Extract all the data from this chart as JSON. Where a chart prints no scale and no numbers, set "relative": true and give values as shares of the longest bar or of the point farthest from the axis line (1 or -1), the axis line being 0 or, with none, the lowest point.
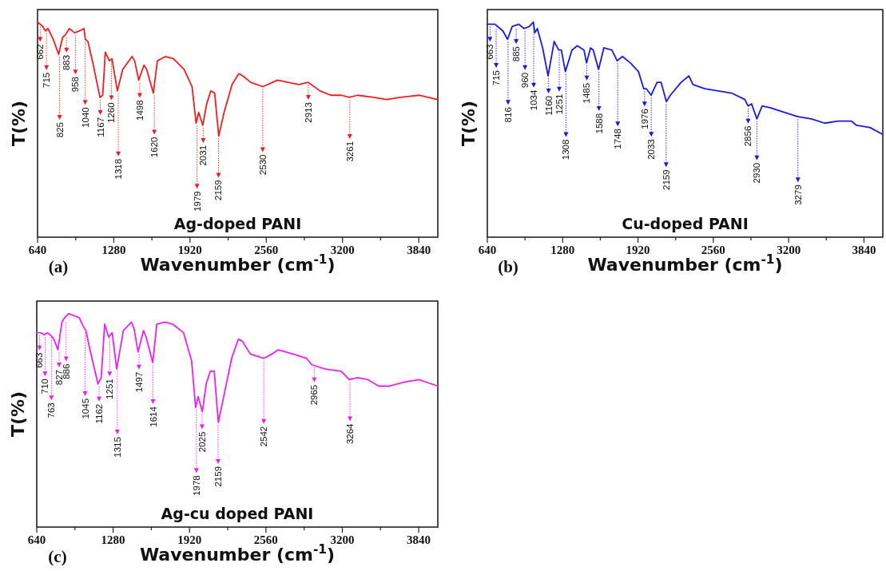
{
  "chart_data": [
    {
      "type": "line",
      "relative": true,
      "title": "Ag-doped PANI",
      "xlabel": "Wavenumber (cm$^{-1}$)",
      "ylabel": "T(%)",
      "xlim": [
        640,
        4000
      ],
      "xticks": [
        640,
        {
          "value": 960,
          "label": null
        },
        1280,
        {
          "value": 1600,
          "label": null
        },
        1920,
        {
          "value": 2240,
          "label": null
        },
        2560,
        {
          "value": 2880,
          "label": null
        },
        3200,
        {
          "value": 3520,
          "label": null
        },
        3840
      ],
      "annotations": [
        "(a)",
        {
          "text": "662",
          "x": 662,
          "y": 0.99
        },
        {
          "text": "715",
          "x": 715,
          "y": 0.97
        },
        {
          "text": "825",
          "x": 825,
          "y": 0.85
        },
        {
          "text": "883",
          "x": 883,
          "y": 0.94
        },
        {
          "text": "958",
          "x": 958,
          "y": 0.95
        },
        {
          "text": "1040",
          "x": 1040,
          "y": 0.92
        },
        {
          "text": "1167",
          "x": 1167,
          "y": 0.65
        },
        {
          "text": "1260",
          "x": 1260,
          "y": 0.83
        },
        {
          "text": "1318",
          "x": 1318,
          "y": 0.68
        },
        {
          "text": "1498",
          "x": 1498,
          "y": 0.73
        },
        {
          "text": "1620",
          "x": 1620,
          "y": 0.67
        },
        {
          "text": "1979",
          "x": 1979,
          "y": 0.53
        },
        {
          "text": "2031",
          "x": 2031,
          "y": 0.52
        },
        {
          "text": "2159",
          "x": 2159,
          "y": 0.47
        },
        {
          "text": "2530",
          "x": 2530,
          "y": 0.7
        },
        {
          "text": "2913",
          "x": 2913,
          "y": 0.72
        },
        {
          "text": "3261",
          "x": 3261,
          "y": 0.65
        }
      ],
      "series": [
        {
          "color": "#f01e1e",
          "x": [
            640,
            683,
            705,
            727,
            772,
            817,
            851,
            873,
            907,
            951,
            996,
            1030,
            1041,
            1063,
            1108,
            1164,
            1187,
            1209,
            1243,
            1265,
            1310,
            1355,
            1433,
            1455,
            1489,
            1534,
            1556,
            1612,
            1646,
            1713,
            1780,
            1870,
            1937,
            1971,
            1993,
            2027,
            2060,
            2094,
            2127,
            2161,
            2206,
            2273,
            2329,
            2363,
            2430,
            2531,
            2654,
            2833,
            2911,
            3012,
            3102,
            3191,
            3258,
            3326,
            3460,
            3572,
            3684,
            3841,
            3998
          ],
          "values": [
            1.0,
            0.98,
            0.96,
            0.97,
            0.92,
            0.85,
            0.93,
            0.94,
            0.97,
            0.95,
            0.96,
            0.97,
            0.92,
            0.91,
            0.8,
            0.65,
            0.66,
            0.86,
            0.82,
            0.83,
            0.68,
            0.78,
            0.84,
            0.82,
            0.73,
            0.8,
            0.78,
            0.67,
            0.82,
            0.84,
            0.83,
            0.78,
            0.7,
            0.53,
            0.58,
            0.52,
            0.62,
            0.68,
            0.67,
            0.47,
            0.58,
            0.71,
            0.76,
            0.75,
            0.72,
            0.7,
            0.73,
            0.71,
            0.72,
            0.68,
            0.66,
            0.66,
            0.65,
            0.66,
            0.65,
            0.64,
            0.65,
            0.66,
            0.64
          ]
        }
      ]
    },
    {
      "type": "line",
      "relative": true,
      "title": "Cu-doped PANI",
      "xlabel": "Wavenumber (cm$^{-1}$)",
      "ylabel": "T(%)",
      "xlim": [
        640,
        4000
      ],
      "xticks": [
        640,
        {
          "value": 960,
          "label": null
        },
        1280,
        {
          "value": 1600,
          "label": null
        },
        1920,
        {
          "value": 2240,
          "label": null
        },
        2560,
        {
          "value": 2880,
          "label": null
        },
        3200,
        {
          "value": 3520,
          "label": null
        },
        3840
      ],
      "annotations": [
        "(b)",
        {
          "text": "663",
          "x": 663,
          "y": 0.99
        },
        {
          "text": "715",
          "x": 715,
          "y": 0.98
        },
        {
          "text": "816",
          "x": 816,
          "y": 0.92
        },
        {
          "text": "885",
          "x": 885,
          "y": 0.98
        },
        {
          "text": "960",
          "x": 960,
          "y": 0.97
        },
        {
          "text": "1034",
          "x": 1034,
          "y": 1.0
        },
        {
          "text": "1160",
          "x": 1160,
          "y": 0.75
        },
        {
          "text": "1251",
          "x": 1251,
          "y": 0.87
        },
        {
          "text": "1308",
          "x": 1308,
          "y": 0.77
        },
        {
          "text": "1485",
          "x": 1485,
          "y": 0.81
        },
        {
          "text": "1588",
          "x": 1588,
          "y": 0.78
        },
        {
          "text": "1748",
          "x": 1748,
          "y": 0.82
        },
        {
          "text": "1976",
          "x": 1976,
          "y": 0.69
        },
        {
          "text": "2033",
          "x": 2033,
          "y": 0.66
        },
        {
          "text": "2159",
          "x": 2159,
          "y": 0.63
        },
        {
          "text": "2856",
          "x": 2856,
          "y": 0.61
        },
        {
          "text": "2930",
          "x": 2930,
          "y": 0.55
        },
        {
          "text": "3279",
          "x": 3279,
          "y": 0.56
        }
      ],
      "series": [
        {
          "color": "#1a1ae6",
          "x": [
            640,
            704,
            726,
            771,
            812,
            851,
            907,
            952,
            997,
            1031,
            1043,
            1065,
            1110,
            1156,
            1208,
            1246,
            1269,
            1303,
            1359,
            1404,
            1461,
            1483,
            1517,
            1540,
            1585,
            1630,
            1698,
            1743,
            1788,
            1856,
            1924,
            1969,
            1992,
            2032,
            2082,
            2116,
            2161,
            2195,
            2286,
            2353,
            2387,
            2489,
            2602,
            2715,
            2828,
            2855,
            2885,
            2930,
            2975,
            3054,
            3167,
            3280,
            3393,
            3506,
            3619,
            3732,
            3777,
            3890,
            3992
          ],
          "values": [
            0.99,
            0.99,
            0.98,
            0.96,
            0.92,
            0.98,
            0.99,
            0.97,
            0.98,
            1.0,
            0.95,
            0.97,
            0.88,
            0.75,
            0.91,
            0.87,
            0.87,
            0.77,
            0.87,
            0.89,
            0.87,
            0.81,
            0.88,
            0.87,
            0.78,
            0.88,
            0.87,
            0.82,
            0.84,
            0.81,
            0.77,
            0.69,
            0.69,
            0.66,
            0.72,
            0.72,
            0.63,
            0.66,
            0.72,
            0.75,
            0.71,
            0.69,
            0.68,
            0.67,
            0.64,
            0.61,
            0.62,
            0.55,
            0.61,
            0.6,
            0.58,
            0.56,
            0.55,
            0.53,
            0.54,
            0.54,
            0.52,
            0.51,
            0.48
          ]
        }
      ]
    },
    {
      "type": "line",
      "relative": true,
      "title": "Ag-cu doped PANI",
      "xlabel": "Wavenumber (cm$^{-1}$)",
      "ylabel": "T(%)",
      "xlim": [
        640,
        4000
      ],
      "xticks": [
        640,
        {
          "value": 960,
          "label": null
        },
        1280,
        {
          "value": 1600,
          "label": null
        },
        1920,
        {
          "value": 2240,
          "label": null
        },
        2560,
        {
          "value": 2880,
          "label": null
        },
        3200,
        {
          "value": 3520,
          "label": null
        },
        3840
      ],
      "annotations": [
        "(c)",
        {
          "text": "663",
          "x": 663,
          "y": 0.91
        },
        {
          "text": "710",
          "x": 710,
          "y": 0.9
        },
        {
          "text": "763",
          "x": 763,
          "y": 0.9
        },
        {
          "text": "827",
          "x": 827,
          "y": 0.83
        },
        {
          "text": "886",
          "x": 886,
          "y": 0.97
        },
        {
          "text": "1045",
          "x": 1045,
          "y": 0.92
        },
        {
          "text": "1162",
          "x": 1162,
          "y": 0.67
        },
        {
          "text": "1251",
          "x": 1251,
          "y": 0.9
        },
        {
          "text": "1315",
          "x": 1315,
          "y": 0.74
        },
        {
          "text": "1497",
          "x": 1497,
          "y": 0.82
        },
        {
          "text": "1614",
          "x": 1614,
          "y": 0.77
        },
        {
          "text": "1978",
          "x": 1978,
          "y": 0.56
        },
        {
          "text": "2025",
          "x": 2025,
          "y": 0.54
        },
        {
          "text": "2159",
          "x": 2159,
          "y": 0.49
        },
        {
          "text": "2542",
          "x": 2542,
          "y": 0.79
        },
        {
          "text": "2965",
          "x": 2965,
          "y": 0.76
        },
        {
          "text": "3264",
          "x": 3264,
          "y": 0.69
        }
      ],
      "series": [
        {
          "color": "#f01ef0",
          "x": [
            640,
            671,
            705,
            727,
            754,
            783,
            817,
            851,
            873,
            907,
            951,
            996,
            1030,
            1052,
            1086,
            1153,
            1180,
            1209,
            1243,
            1272,
            1310,
            1366,
            1433,
            1455,
            1489,
            1534,
            1556,
            1612,
            1646,
            1713,
            1780,
            1870,
            1937,
            1971,
            1993,
            2027,
            2060,
            2094,
            2127,
            2161,
            2206,
            2273,
            2329,
            2363,
            2430,
            2542,
            2609,
            2665,
            2788,
            2900,
            2945,
            3057,
            3191,
            3258,
            3326,
            3415,
            3505,
            3595,
            3729,
            3841,
            4000
          ],
          "values": [
            0.91,
            0.91,
            0.9,
            0.91,
            0.9,
            0.88,
            0.83,
            0.96,
            0.98,
            1.0,
            0.99,
            0.98,
            0.94,
            0.92,
            0.83,
            0.67,
            0.7,
            0.95,
            0.89,
            0.91,
            0.74,
            0.92,
            0.96,
            0.93,
            0.82,
            0.92,
            0.89,
            0.77,
            0.95,
            0.96,
            0.95,
            0.91,
            0.78,
            0.56,
            0.61,
            0.54,
            0.67,
            0.73,
            0.73,
            0.49,
            0.61,
            0.79,
            0.88,
            0.87,
            0.81,
            0.79,
            0.81,
            0.83,
            0.81,
            0.79,
            0.76,
            0.74,
            0.73,
            0.69,
            0.7,
            0.69,
            0.66,
            0.66,
            0.68,
            0.69,
            0.66
          ]
        }
      ]
    }
  ]
}
